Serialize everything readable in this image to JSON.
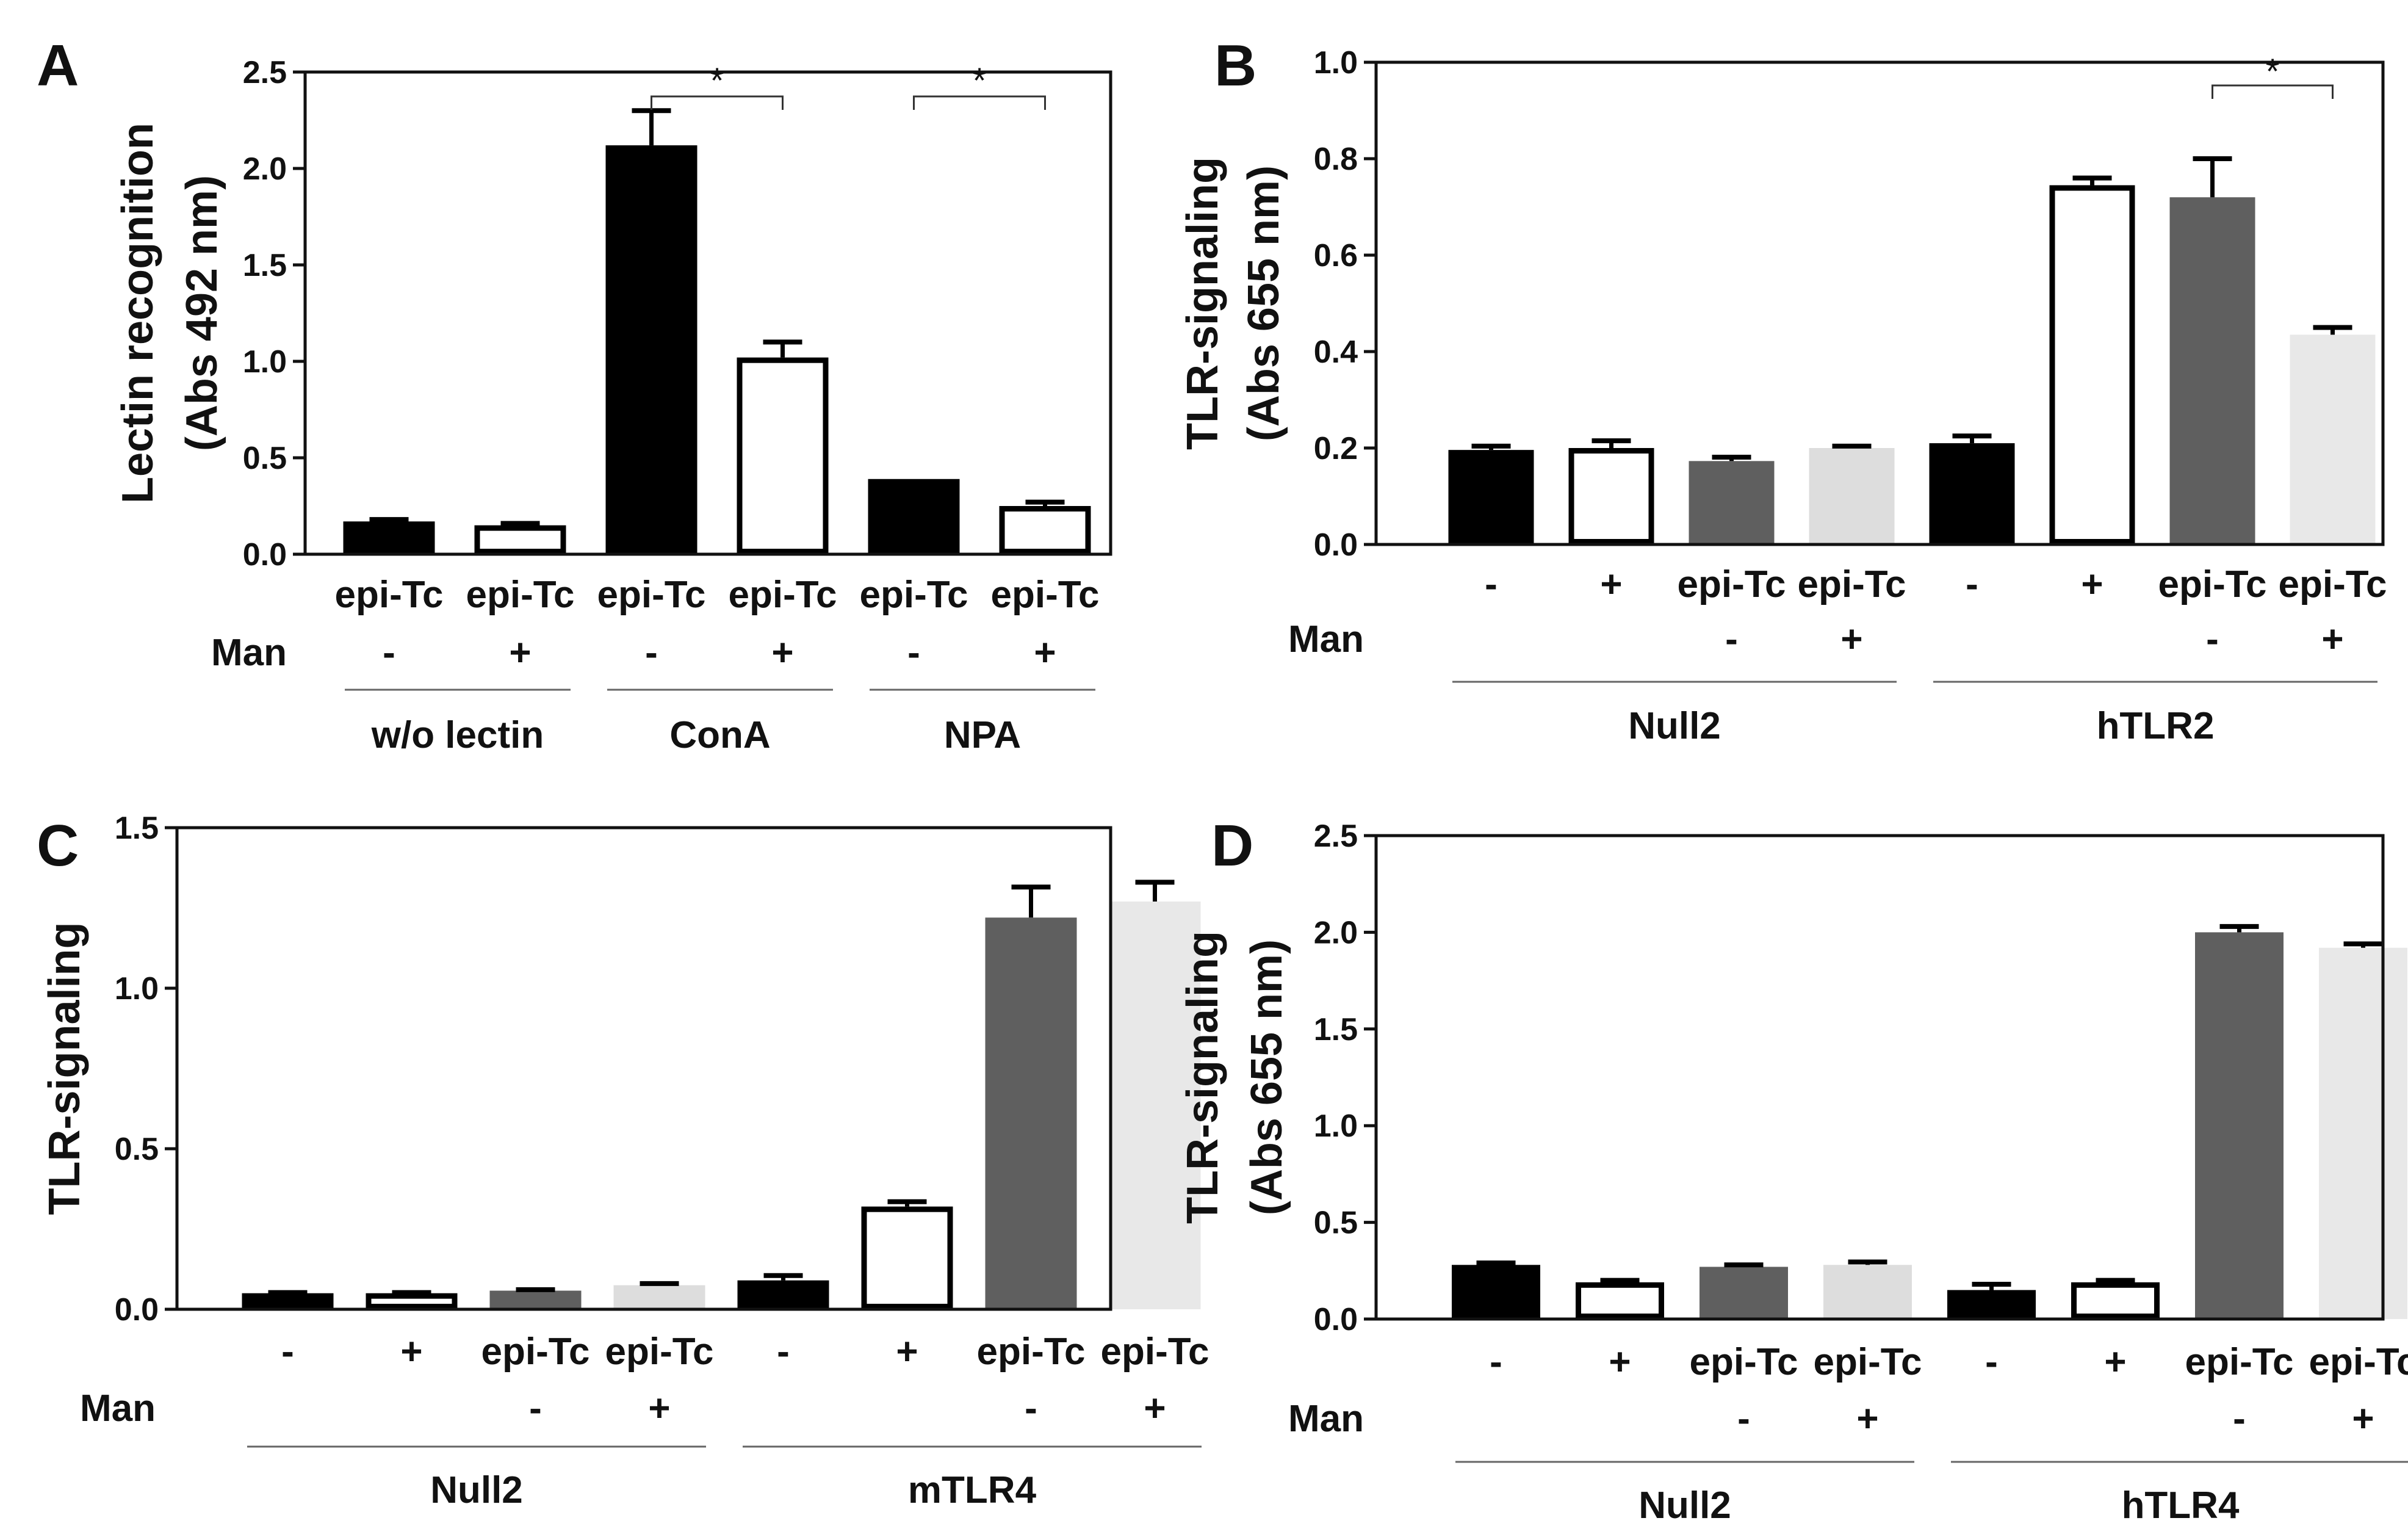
{
  "chart_data": [
    {
      "panel": "A",
      "type": "bar",
      "ylabel_lines": [
        "Lectin recognition",
        "(Abs 492 nm)"
      ],
      "ylim": [
        0,
        2.5
      ],
      "yticks": [
        "0.0",
        "0.5",
        "1.0",
        "1.5",
        "2.0",
        "2.5"
      ],
      "categories": [
        "epi-Tc",
        "epi-Tc",
        "epi-Tc",
        "epi-Tc",
        "epi-Tc",
        "epi-Tc"
      ],
      "man_label": "Man",
      "man_row": [
        "-",
        "+",
        "-",
        "+",
        "-",
        "+"
      ],
      "values": [
        0.17,
        0.15,
        2.12,
        1.02,
        0.39,
        0.25
      ],
      "errors": [
        0.01,
        0.01,
        0.18,
        0.08,
        0.0,
        0.02
      ],
      "fills": [
        "#000000",
        "#ffffff",
        "#000000",
        "#ffffff",
        "#000000",
        "#ffffff"
      ],
      "groups": [
        {
          "label": "w/o lectin",
          "from": 0,
          "to": 1
        },
        {
          "label": "ConA",
          "from": 2,
          "to": 3
        },
        {
          "label": "NPA",
          "from": 4,
          "to": 5
        }
      ],
      "significance": [
        {
          "from": 2,
          "to": 3,
          "label": "*"
        },
        {
          "from": 4,
          "to": 5,
          "label": "*"
        }
      ]
    },
    {
      "panel": "B",
      "type": "bar",
      "ylabel_lines": [
        "TLR-signaling",
        "(Abs 655 nm)"
      ],
      "ylim": [
        0,
        1.0
      ],
      "yticks": [
        "0.0",
        "0.2",
        "0.4",
        "0.6",
        "0.8",
        "1.0"
      ],
      "categories": [
        "-",
        "+",
        "epi-Tc",
        "epi-Tc",
        "-",
        "+",
        "epi-Tc",
        "epi-Tc"
      ],
      "man_label": "Man",
      "man_row": [
        "",
        "",
        "-",
        "+",
        "",
        "",
        "-",
        "+"
      ],
      "values": [
        0.196,
        0.2,
        0.173,
        0.2,
        0.21,
        0.745,
        0.72,
        0.435
      ],
      "errors": [
        0.008,
        0.015,
        0.008,
        0.004,
        0.015,
        0.015,
        0.08,
        0.015
      ],
      "fills": [
        "#000000",
        "#ffffff",
        "#5f5f5f",
        "#dddddd",
        "#000000",
        "#ffffff",
        "#5f5f5f",
        "#e8e8e8"
      ],
      "groups": [
        {
          "label": "Null2",
          "from": 0,
          "to": 3
        },
        {
          "label": "hTLR2",
          "from": 4,
          "to": 7
        }
      ],
      "significance": [
        {
          "from": 6,
          "to": 7,
          "label": "*"
        }
      ]
    },
    {
      "panel": "C",
      "type": "bar",
      "ylabel_lines": [
        "TLR-signaling"
      ],
      "ylim": [
        0,
        1.5
      ],
      "yticks": [
        "0.0",
        "0.5",
        "1.0",
        "1.5"
      ],
      "categories": [
        "-",
        "+",
        "epi-Tc",
        "epi-Tc",
        "-",
        "+",
        "epi-Tc",
        "epi-Tc"
      ],
      "man_label": "Man",
      "man_row": [
        "",
        "",
        "-",
        "+",
        "",
        "",
        "-",
        "+"
      ],
      "values": [
        0.05,
        0.05,
        0.058,
        0.075,
        0.09,
        0.32,
        1.22,
        1.27
      ],
      "errors": [
        0.002,
        0.002,
        0.003,
        0.005,
        0.015,
        0.015,
        0.095,
        0.06
      ],
      "fills": [
        "#000000",
        "#ffffff",
        "#5f5f5f",
        "#dddddd",
        "#000000",
        "#ffffff",
        "#5f5f5f",
        "#e8e8e8"
      ],
      "groups": [
        {
          "label": "Null2",
          "from": 0,
          "to": 3
        },
        {
          "label": "mTLR4",
          "from": 4,
          "to": 7
        }
      ],
      "significance": []
    },
    {
      "panel": "D",
      "type": "bar",
      "ylabel_lines": [
        "TLR-signaling",
        "(Abs 655 nm)"
      ],
      "ylim": [
        0,
        2.5
      ],
      "yticks": [
        "0.0",
        "0.5",
        "1.0",
        "1.5",
        "2.0",
        "2.5"
      ],
      "categories": [
        "-",
        "+",
        "epi-Tc",
        "epi-Tc",
        "-",
        "+",
        "epi-Tc",
        "epi-Tc"
      ],
      "man_label": "Man",
      "man_row": [
        "",
        "",
        "-",
        "+",
        "",
        "",
        "-",
        "+"
      ],
      "values": [
        0.28,
        0.19,
        0.27,
        0.28,
        0.15,
        0.19,
        2.0,
        1.92
      ],
      "errors": [
        0.01,
        0.01,
        0.01,
        0.015,
        0.03,
        0.01,
        0.03,
        0.02
      ],
      "fills": [
        "#000000",
        "#ffffff",
        "#5f5f5f",
        "#dddddd",
        "#000000",
        "#ffffff",
        "#5f5f5f",
        "#e8e8e8"
      ],
      "groups": [
        {
          "label": "Null2",
          "from": 0,
          "to": 3
        },
        {
          "label": "hTLR4",
          "from": 4,
          "to": 7
        }
      ],
      "significance": []
    }
  ]
}
